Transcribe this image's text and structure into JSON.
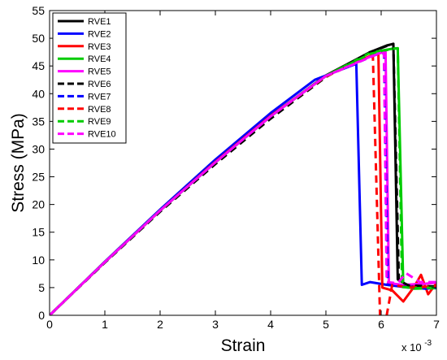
{
  "chart_data": {
    "type": "line",
    "title": "",
    "xlabel": "Strain",
    "ylabel": "Stress (MPa)",
    "x_multiplier_label": "x 10",
    "x_multiplier_exponent": "-3",
    "xlim": [
      0,
      7
    ],
    "ylim": [
      0,
      55
    ],
    "x_scale": 0.001,
    "xticks": [
      "0",
      "1",
      "2",
      "3",
      "4",
      "5",
      "6",
      "7"
    ],
    "yticks": [
      "0",
      "5",
      "10",
      "15",
      "20",
      "25",
      "30",
      "35",
      "40",
      "45",
      "50",
      "55"
    ],
    "grid": false,
    "legend_position": "top-left",
    "series": [
      {
        "name": "RVE1",
        "color": "#000000",
        "dash": "solid",
        "points": [
          [
            0,
            0
          ],
          [
            1,
            9.6
          ],
          [
            2,
            18.9
          ],
          [
            3,
            27.6
          ],
          [
            4,
            35.9
          ],
          [
            5,
            43.3
          ],
          [
            5.8,
            47.5
          ],
          [
            6.1,
            48.7
          ],
          [
            6.22,
            49
          ],
          [
            6.3,
            6.5
          ],
          [
            6.5,
            5.3
          ],
          [
            7,
            5.0
          ]
        ]
      },
      {
        "name": "RVE2",
        "color": "#0000ff",
        "dash": "solid",
        "points": [
          [
            0,
            0
          ],
          [
            1,
            9.7
          ],
          [
            2,
            19.1
          ],
          [
            3,
            28.1
          ],
          [
            4,
            36.5
          ],
          [
            4.8,
            42.5
          ],
          [
            5.55,
            45.4
          ],
          [
            5.65,
            5.5
          ],
          [
            5.8,
            6.0
          ],
          [
            6.1,
            5.5
          ],
          [
            6.5,
            5.0
          ],
          [
            7,
            5.0
          ]
        ]
      },
      {
        "name": "RVE3",
        "color": "#ff0000",
        "dash": "solid",
        "points": [
          [
            0,
            0
          ],
          [
            1,
            9.6
          ],
          [
            2,
            18.9
          ],
          [
            3,
            27.7
          ],
          [
            4,
            36.0
          ],
          [
            5,
            43.2
          ],
          [
            5.8,
            46.8
          ],
          [
            5.95,
            47.2
          ],
          [
            6.02,
            5.0
          ],
          [
            6.2,
            4.5
          ],
          [
            6.4,
            2.5
          ],
          [
            6.6,
            5.2
          ],
          [
            6.72,
            7.3
          ],
          [
            6.85,
            3.8
          ],
          [
            7,
            5.8
          ]
        ]
      },
      {
        "name": "RVE4",
        "color": "#00cc00",
        "dash": "solid",
        "points": [
          [
            0,
            0
          ],
          [
            1,
            9.6
          ],
          [
            2,
            18.9
          ],
          [
            3,
            27.6
          ],
          [
            4,
            35.9
          ],
          [
            5,
            43.2
          ],
          [
            5.8,
            47.4
          ],
          [
            6.2,
            48.1
          ],
          [
            6.3,
            48.2
          ],
          [
            6.4,
            5.3
          ],
          [
            6.6,
            4.8
          ],
          [
            7,
            4.9
          ]
        ]
      },
      {
        "name": "RVE5",
        "color": "#ff00ff",
        "dash": "solid",
        "points": [
          [
            0,
            0
          ],
          [
            1,
            9.6
          ],
          [
            2,
            18.9
          ],
          [
            3,
            27.6
          ],
          [
            4,
            35.9
          ],
          [
            5,
            43.2
          ],
          [
            5.9,
            47.1
          ],
          [
            6.08,
            47.6
          ],
          [
            6.14,
            5.8
          ],
          [
            6.4,
            5.5
          ],
          [
            6.8,
            5.7
          ],
          [
            7,
            5.9
          ]
        ]
      },
      {
        "name": "RVE6",
        "color": "#000000",
        "dash": "dashed",
        "points": [
          [
            0,
            0
          ],
          [
            1,
            9.5
          ],
          [
            2,
            18.7
          ],
          [
            3,
            27.3
          ],
          [
            4,
            35.5
          ],
          [
            5,
            43.0
          ],
          [
            5.8,
            47.5
          ],
          [
            6.1,
            48.6
          ],
          [
            6.22,
            49
          ],
          [
            6.32,
            6.2
          ],
          [
            6.5,
            5.4
          ],
          [
            7,
            5.2
          ]
        ]
      },
      {
        "name": "RVE7",
        "color": "#0000ff",
        "dash": "dashed",
        "points": [
          [
            0,
            0
          ],
          [
            1,
            9.6
          ],
          [
            2,
            18.9
          ],
          [
            3,
            27.6
          ],
          [
            4,
            35.9
          ],
          [
            5,
            43.2
          ],
          [
            5.9,
            47.0
          ],
          [
            6.05,
            47.3
          ],
          [
            6.12,
            5.5
          ],
          [
            6.4,
            5.2
          ],
          [
            6.8,
            4.8
          ],
          [
            7,
            5.0
          ]
        ]
      },
      {
        "name": "RVE8",
        "color": "#ff0000",
        "dash": "dashed",
        "points": [
          [
            0,
            0
          ],
          [
            1,
            9.6
          ],
          [
            2,
            18.9
          ],
          [
            3,
            27.6
          ],
          [
            4,
            35.9
          ],
          [
            5,
            43.1
          ],
          [
            5.7,
            46.3
          ],
          [
            5.85,
            46.8
          ],
          [
            5.98,
            0
          ],
          [
            6.1,
            0
          ],
          [
            6.2,
            5.5
          ],
          [
            6.5,
            5.0
          ],
          [
            7,
            5.2
          ]
        ]
      },
      {
        "name": "RVE9",
        "color": "#00cc00",
        "dash": "dashed",
        "points": [
          [
            0,
            0
          ],
          [
            1,
            9.6
          ],
          [
            2,
            18.9
          ],
          [
            3,
            27.6
          ],
          [
            4,
            35.9
          ],
          [
            5,
            43.2
          ],
          [
            5.8,
            47.2
          ],
          [
            6.2,
            48.1
          ],
          [
            6.3,
            48.2
          ],
          [
            6.38,
            5.1
          ],
          [
            6.6,
            4.9
          ],
          [
            7,
            5.0
          ]
        ]
      },
      {
        "name": "RVE10",
        "color": "#ff00ff",
        "dash": "dashed",
        "points": [
          [
            0,
            0
          ],
          [
            1,
            9.6
          ],
          [
            2,
            18.9
          ],
          [
            3,
            27.6
          ],
          [
            4,
            35.9
          ],
          [
            5,
            43.2
          ],
          [
            5.9,
            47.0
          ],
          [
            6.05,
            47.4
          ],
          [
            6.1,
            6.0
          ],
          [
            6.3,
            5.8
          ],
          [
            6.45,
            7.6
          ],
          [
            6.7,
            6.0
          ],
          [
            7,
            6.0
          ]
        ]
      }
    ]
  }
}
